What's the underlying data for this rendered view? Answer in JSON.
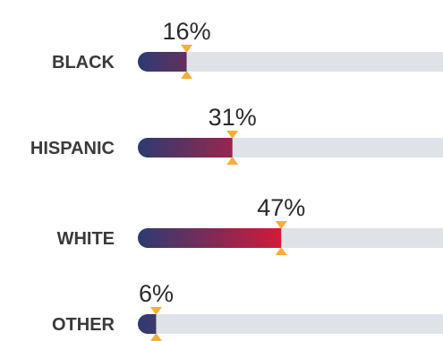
{
  "chart_data": {
    "type": "bar",
    "orientation": "horizontal",
    "categories": [
      "BLACK",
      "HISPANIC",
      "WHITE",
      "OTHER"
    ],
    "values": [
      16,
      31,
      47,
      6
    ],
    "value_labels": [
      "16%",
      "31%",
      "47%",
      "6%"
    ],
    "xlim": [
      0,
      100
    ],
    "title": "",
    "xlabel": "",
    "ylabel": "",
    "grid": false,
    "legend": "none"
  },
  "colors": {
    "track": "#dfe3e8",
    "bar_start": "#2c3b72",
    "bar_end": "#d11b3a",
    "marker": "#f6ad3a",
    "category_text": "#3a3a3a",
    "value_text": "#2b2b2b"
  }
}
